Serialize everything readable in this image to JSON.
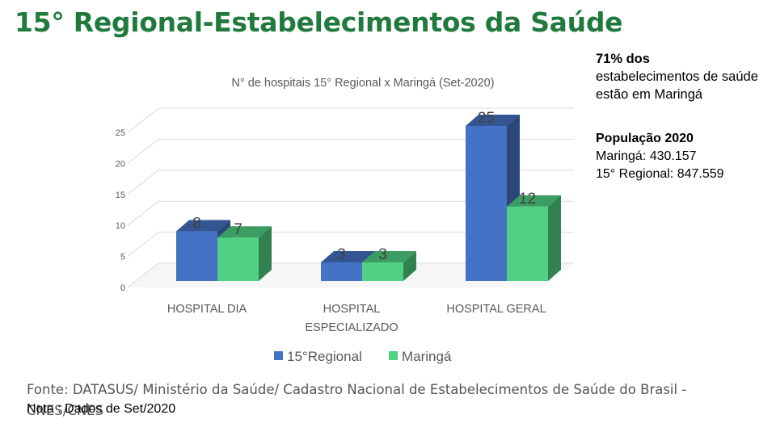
{
  "title": "15° Regional-Estabelecimentos da Saúde",
  "side_note": {
    "highlight": "71% dos",
    "rest": "estabelecimentos de saúde estão em Maringá"
  },
  "population": {
    "heading": "População 2020",
    "lines": [
      "Maringá: 430.157",
      "15° Regional: 847.559"
    ]
  },
  "source": "Fonte: DATASUS/ Ministério da Saúde/ Cadastro Nacional de Estabelecimentos de Saúde do Brasil - CNES/CNES",
  "note": "Nota : Dados de Set/2020",
  "colors": {
    "regional": "#4472c4",
    "maringa": "#50d183",
    "title": "#217a3d"
  },
  "chart_data": {
    "type": "bar",
    "title": "N° de hospitais 15° Regional x Maringá (Set-2020)",
    "categories": [
      "HOSPITAL DIA",
      "HOSPITAL ESPECIALIZADO",
      "HOSPITAL GERAL"
    ],
    "series": [
      {
        "name": "15°Regional",
        "values": [
          8,
          3,
          25
        ]
      },
      {
        "name": "Maringá",
        "values": [
          7,
          3,
          12
        ]
      }
    ],
    "yticks": [
      0,
      5,
      10,
      15,
      20,
      25
    ],
    "ylim": [
      0,
      25
    ],
    "grid": true,
    "legend": "bottom",
    "style": "3d-clustered-column"
  }
}
